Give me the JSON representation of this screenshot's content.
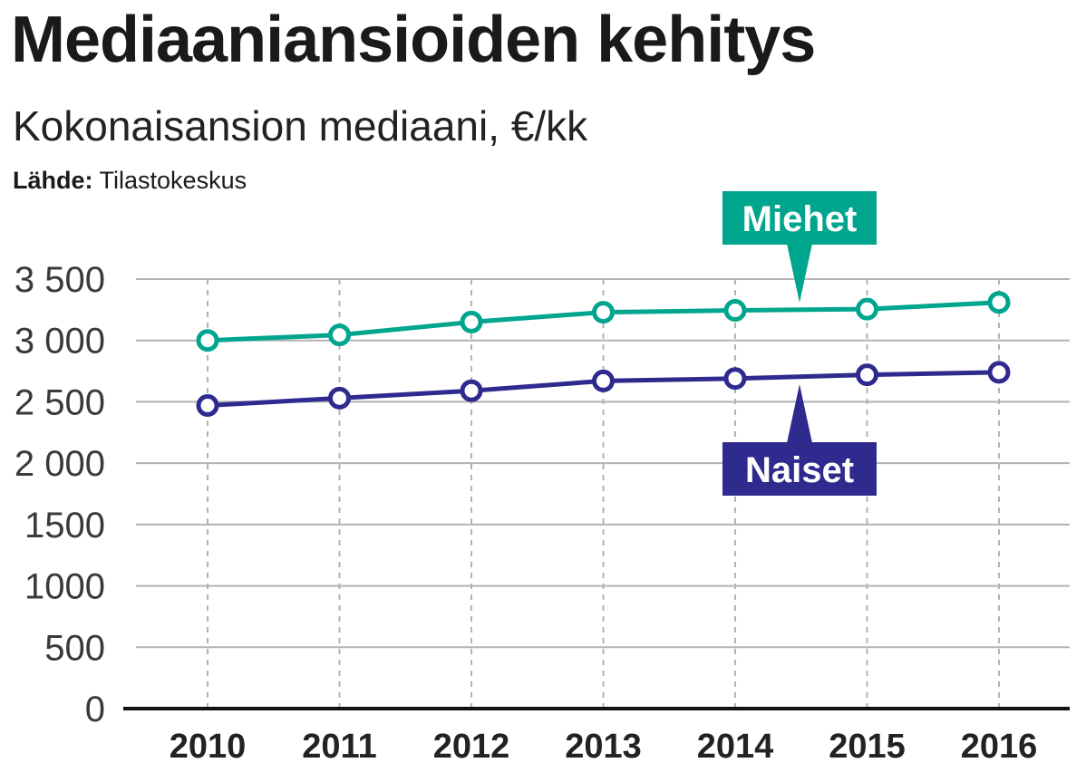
{
  "header": {
    "title": "Mediaaniansioiden kehitys",
    "subtitle": "Kokonaisansion mediaani, €/kk",
    "source_label": "Lähde:",
    "source_value": "Tilastokeskus"
  },
  "colors": {
    "miehet": "#00a58e",
    "naiset": "#2e2a8e",
    "grid": "#b3b3b3",
    "axis": "#111111"
  },
  "chart_data": {
    "type": "line",
    "title": "Mediaaniansioiden kehitys",
    "subtitle": "Kokonaisansion mediaani, €/kk",
    "x": [
      "2010",
      "2011",
      "2012",
      "2013",
      "2014",
      "2015",
      "2016"
    ],
    "y_ticks": [
      "0",
      "500",
      "1000",
      "1500",
      "2 000",
      "2 500",
      "3 000",
      "3 500"
    ],
    "y_tick_values": [
      0,
      500,
      1000,
      1500,
      2000,
      2500,
      3000,
      3500
    ],
    "ylim": [
      0,
      3500
    ],
    "grid": true,
    "series": [
      {
        "name": "Miehet",
        "color": "#00a58e",
        "values": [
          3000,
          3045,
          3150,
          3230,
          3245,
          3255,
          3310
        ]
      },
      {
        "name": "Naiset",
        "color": "#2e2a8e",
        "values": [
          2470,
          2530,
          2590,
          2670,
          2690,
          2720,
          2740
        ]
      }
    ]
  }
}
